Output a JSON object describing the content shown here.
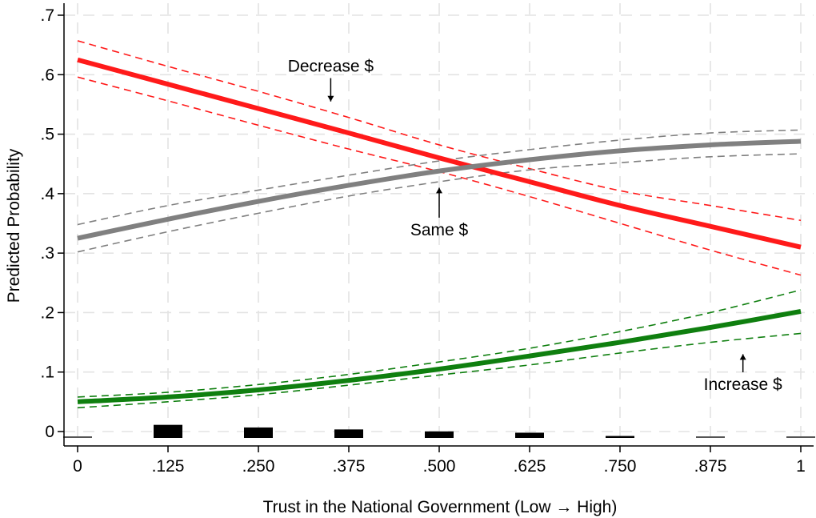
{
  "chart_data": {
    "type": "line",
    "title": "",
    "xlabel": "Trust in the National Government (Low → High)",
    "ylabel": "Predicted Probability",
    "xlim": [
      0,
      1
    ],
    "ylim": [
      -0.01,
      0.73
    ],
    "grid": "both-dashed",
    "x_ticks": [
      0,
      0.125,
      0.25,
      0.375,
      0.5,
      0.625,
      0.75,
      0.875,
      1
    ],
    "x_tick_labels": [
      "0",
      ".125",
      ".250",
      ".375",
      ".500",
      ".625",
      ".750",
      ".875",
      "1"
    ],
    "y_ticks": [
      0,
      0.1,
      0.2,
      0.3,
      0.4,
      0.5,
      0.6,
      0.7
    ],
    "y_tick_labels": [
      "0",
      ".1",
      ".2",
      ".3",
      ".4",
      ".5",
      ".6",
      ".7"
    ],
    "x": [
      0,
      0.125,
      0.25,
      0.375,
      0.5,
      0.625,
      0.75,
      0.875,
      1
    ],
    "series": [
      {
        "name": "Decrease $",
        "color": "#ff1a1a",
        "values": [
          0.625,
          0.584,
          0.543,
          0.502,
          0.46,
          0.42,
          0.38,
          0.345,
          0.31
        ],
        "ci_upper": [
          0.657,
          0.614,
          0.572,
          0.528,
          0.482,
          0.442,
          0.405,
          0.38,
          0.355
        ],
        "ci_lower": [
          0.596,
          0.556,
          0.515,
          0.475,
          0.437,
          0.395,
          0.35,
          0.305,
          0.263
        ]
      },
      {
        "name": "Same $",
        "color": "#808080",
        "values": [
          0.325,
          0.357,
          0.387,
          0.414,
          0.438,
          0.457,
          0.472,
          0.482,
          0.488
        ],
        "ci_upper": [
          0.348,
          0.38,
          0.406,
          0.431,
          0.455,
          0.474,
          0.49,
          0.502,
          0.507
        ],
        "ci_lower": [
          0.302,
          0.336,
          0.367,
          0.396,
          0.42,
          0.44,
          0.452,
          0.462,
          0.467
        ]
      },
      {
        "name": "Increase $",
        "color": "#0f7f0f",
        "values": [
          0.05,
          0.058,
          0.07,
          0.086,
          0.105,
          0.127,
          0.15,
          0.175,
          0.202
        ],
        "ci_upper": [
          0.058,
          0.066,
          0.079,
          0.096,
          0.117,
          0.14,
          0.168,
          0.2,
          0.238
        ],
        "ci_lower": [
          0.04,
          0.05,
          0.062,
          0.078,
          0.095,
          0.112,
          0.132,
          0.15,
          0.165
        ]
      }
    ],
    "histogram": {
      "x": [
        0,
        0.125,
        0.25,
        0.375,
        0.5,
        0.625,
        0.75,
        0.875,
        1
      ],
      "values": [
        0.001,
        0.04,
        0.032,
        0.026,
        0.02,
        0.016,
        0.006,
        0.002,
        0.001
      ]
    },
    "annotations": [
      {
        "text": "Decrease $",
        "x": 0.35,
        "y": 0.605,
        "arrow_to": [
          0.35,
          0.555
        ]
      },
      {
        "text": "Same $",
        "x": 0.5,
        "y": 0.33,
        "arrow_to": [
          0.5,
          0.41
        ]
      },
      {
        "text": "Increase $",
        "x": 0.92,
        "y": 0.07,
        "arrow_to": [
          0.92,
          0.13
        ]
      }
    ]
  }
}
